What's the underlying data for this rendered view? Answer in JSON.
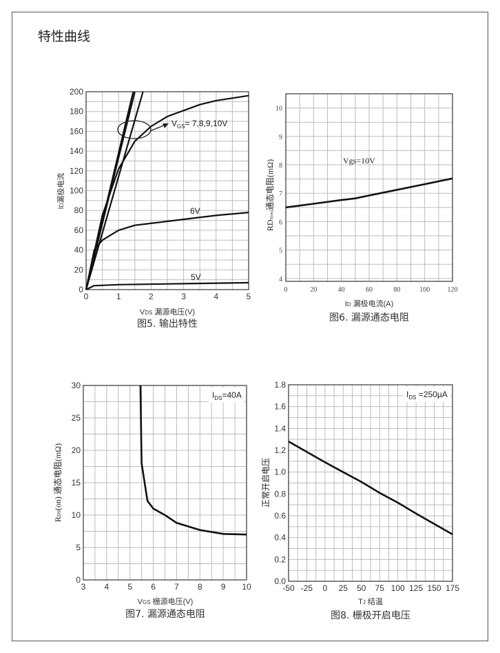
{
  "page": {
    "title": "特性曲线"
  },
  "chart_data": [
    {
      "type": "line",
      "caption": "图5. 输出特性",
      "xlabel": {
        "main": "V",
        "sub": "DS",
        "rest": " 漏源电压(V)"
      },
      "ylabel": {
        "main": "I",
        "sub": "D",
        "rest": "漏极电流"
      },
      "xlim": [
        0,
        5
      ],
      "ylim": [
        0,
        200
      ],
      "xticks": [
        0,
        1,
        2,
        3,
        4,
        5
      ],
      "yticks": [
        0,
        20,
        40,
        60,
        80,
        100,
        120,
        140,
        160,
        180,
        200
      ],
      "grid": true,
      "annotations": {
        "vgs_main": "V",
        "vgs_sub": "GS",
        "vgs_rest": "= 7,8,9,10V",
        "v6": "6V",
        "v5": "5V"
      },
      "series": [
        {
          "x": [
            0,
            1.45
          ],
          "y": [
            0,
            200
          ]
        },
        {
          "x": [
            0,
            1.5
          ],
          "y": [
            0,
            200
          ]
        },
        {
          "x": [
            0,
            1.75
          ],
          "y": [
            0,
            200
          ]
        },
        {
          "x": [
            0,
            0.5,
            1,
            1.5,
            2,
            2.5,
            3,
            3.5,
            4,
            5
          ],
          "y": [
            0,
            75,
            122,
            150,
            165,
            175,
            181,
            187,
            191,
            196
          ]
        },
        {
          "name": "6V",
          "x": [
            0,
            0.25,
            0.5,
            0.75,
            1,
            1.5,
            2,
            3,
            4,
            5
          ],
          "y": [
            0,
            40,
            50,
            55,
            60,
            65,
            67,
            71,
            75,
            78
          ]
        },
        {
          "name": "5V",
          "x": [
            0,
            0.25,
            1,
            3,
            5
          ],
          "y": [
            0,
            4,
            5,
            6,
            7
          ]
        }
      ]
    },
    {
      "type": "line",
      "caption": "图6. 漏源通态电阻",
      "xlabel": {
        "main": "I",
        "sub": "D",
        "rest": " 漏极电流(A)"
      },
      "ylabel": {
        "main": "RD",
        "sub": "S(on)",
        "rest": "通态电阻(mΩ)"
      },
      "xlim": [
        0,
        120
      ],
      "ylim": [
        3.9,
        10.5
      ],
      "xticks": [
        0,
        20,
        40,
        60,
        80,
        100,
        120
      ],
      "yticks": [
        4,
        5,
        6,
        7,
        8,
        9,
        10
      ],
      "grid": true,
      "annotations": {
        "vgs": "Vgs=10V"
      },
      "series": [
        {
          "x": [
            0,
            20,
            40,
            50,
            60,
            80,
            100,
            120
          ],
          "y": [
            6.5,
            6.63,
            6.76,
            6.82,
            6.92,
            7.12,
            7.32,
            7.52
          ]
        }
      ]
    },
    {
      "type": "line",
      "caption": "图7. 漏源通态电阻",
      "xlabel": {
        "main": "V",
        "sub": "GS",
        "rest": " 栅源电压(V)"
      },
      "ylabel": {
        "main": "R",
        "sub": "DS",
        "rest": "(on) 通态电阻(mΩ)"
      },
      "xlim": [
        3,
        10
      ],
      "ylim": [
        0,
        30
      ],
      "xticks": [
        3,
        4,
        5,
        6,
        7,
        8,
        9,
        10
      ],
      "yticks": [
        0,
        5,
        10,
        15,
        20,
        25,
        30
      ],
      "grid": true,
      "annotations": {
        "ids_main": "I",
        "ids_sub": "DS",
        "ids_rest": "=40A"
      },
      "series": [
        {
          "x": [
            5.45,
            5.5,
            5.75,
            6,
            6.5,
            7,
            8,
            9,
            10
          ],
          "y": [
            30,
            18,
            12.2,
            11,
            10,
            8.8,
            7.7,
            7.1,
            7.0
          ]
        }
      ]
    },
    {
      "type": "line",
      "caption": "图8. 栅极开启电压",
      "xlabel": {
        "main": "T",
        "sub": "J",
        "rest": " 结温"
      },
      "ylabel": {
        "main": "",
        "sub": "",
        "rest": "正常开启电压"
      },
      "xlim": [
        -50,
        175
      ],
      "ylim": [
        0,
        1.8
      ],
      "xticks": [
        -50,
        -25,
        0,
        25,
        50,
        75,
        100,
        125,
        150,
        175
      ],
      "yticks": [
        0.0,
        0.2,
        0.4,
        0.6,
        0.8,
        1.0,
        1.2,
        1.4,
        1.6,
        1.8
      ],
      "grid": true,
      "annotations": {
        "ids_main": "I",
        "ids_sub": "DS",
        "ids_rest": " =250μA"
      },
      "series": [
        {
          "x": [
            -50,
            0,
            25,
            50,
            75,
            100,
            125,
            175
          ],
          "y": [
            1.28,
            1.09,
            1.0,
            0.91,
            0.81,
            0.72,
            0.62,
            0.43
          ]
        }
      ]
    }
  ]
}
